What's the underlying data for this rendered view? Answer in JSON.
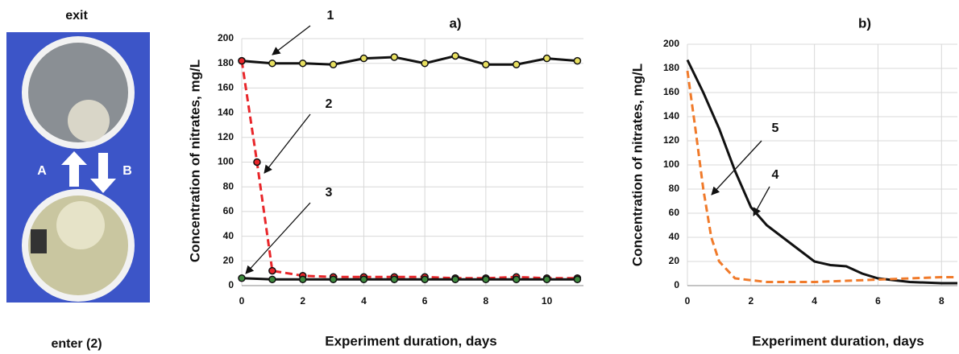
{
  "photo": {
    "top_label": "exit",
    "bottom_label": "enter  (2)",
    "left_arrow_label": "A",
    "right_arrow_label": "B"
  },
  "chart_data": [
    {
      "type": "line",
      "title": "a)",
      "x_label": "Experiment duration, days",
      "y_label": "Concentration of nitrates, mg/L",
      "xlim": [
        0,
        11.2
      ],
      "xticks": [
        0,
        2,
        4,
        6,
        8,
        10
      ],
      "ylim": [
        0,
        200
      ],
      "yticks": [
        0,
        20,
        40,
        60,
        80,
        100,
        120,
        140,
        160,
        180,
        200
      ],
      "grid": true,
      "series": [
        {
          "name": "1",
          "color": "#111111",
          "marker": "#e8e060",
          "dashed": false,
          "x": [
            0,
            1,
            2,
            3,
            4,
            5,
            6,
            7,
            8,
            9,
            10,
            11
          ],
          "values": [
            182,
            180,
            180,
            179,
            184,
            185,
            180,
            186,
            179,
            179,
            184,
            182
          ]
        },
        {
          "name": "2",
          "color": "#e8262a",
          "marker": "#e8262a",
          "dashed": true,
          "x": [
            0,
            0.5,
            1,
            2,
            3,
            4,
            5,
            6,
            7,
            8,
            9,
            10,
            11
          ],
          "values": [
            182,
            100,
            12,
            8,
            7,
            7,
            7,
            7,
            6,
            6,
            7,
            6,
            6
          ]
        },
        {
          "name": "3",
          "color": "#111111",
          "marker": "#3d8a3d",
          "dashed": false,
          "x": [
            0,
            1,
            2,
            3,
            4,
            5,
            6,
            7,
            8,
            9,
            10,
            11
          ],
          "values": [
            6,
            5,
            5,
            5,
            5,
            5,
            5,
            5,
            5,
            5,
            5,
            5
          ]
        }
      ]
    },
    {
      "type": "line",
      "title": "b)",
      "x_label": "Experiment duration, days",
      "y_label": "Concentration of nitrates, mg/L",
      "xlim": [
        0,
        8.5
      ],
      "xticks": [
        0,
        2,
        4,
        6,
        8
      ],
      "ylim": [
        0,
        200
      ],
      "yticks": [
        0,
        20,
        40,
        60,
        80,
        100,
        120,
        140,
        160,
        180,
        200
      ],
      "grid": true,
      "series": [
        {
          "name": "4",
          "color": "#111111",
          "dashed": false,
          "x": [
            0,
            0.5,
            1,
            1.5,
            2,
            2.5,
            3,
            3.5,
            4,
            4.5,
            5,
            5.5,
            6,
            7,
            8,
            8.5
          ],
          "values": [
            187,
            160,
            130,
            95,
            65,
            50,
            40,
            30,
            20,
            17,
            16,
            10,
            6,
            3,
            2,
            2
          ]
        },
        {
          "name": "5",
          "color": "#f07a2a",
          "dashed": true,
          "x": [
            0,
            0.25,
            0.5,
            0.75,
            1,
            1.5,
            2.5,
            4,
            5,
            6,
            7,
            8,
            8.5
          ],
          "values": [
            178,
            130,
            80,
            40,
            20,
            6,
            3,
            3,
            4,
            5,
            6,
            7,
            7
          ]
        }
      ]
    }
  ]
}
